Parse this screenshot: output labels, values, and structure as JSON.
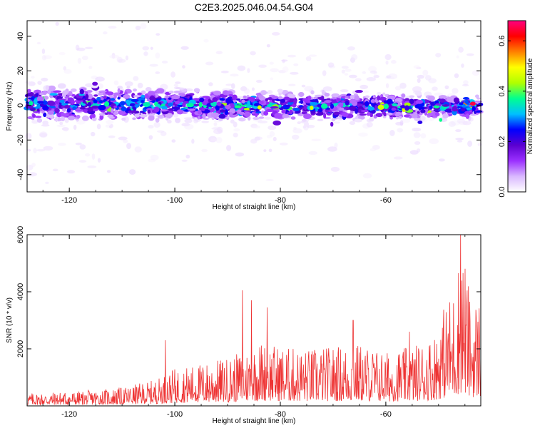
{
  "figure": {
    "title": "C2E3.2025.046.04.54.G04"
  },
  "chart_data": [
    {
      "type": "heatmap",
      "title": "C2E3.2025.046.04.54.G04",
      "xlabel": "Height of straight line (km)",
      "ylabel": "Frequency (Hz)",
      "xlim": [
        -128,
        -42
      ],
      "ylim": [
        -50,
        49
      ],
      "x_ticks": [
        -120,
        -100,
        -80,
        -60
      ],
      "y_ticks": [
        -40,
        -20,
        0,
        20,
        40
      ],
      "grid": false,
      "colorbar": {
        "label": "Normalized spectral amplitude",
        "range": [
          0,
          0.68
        ],
        "ticks": [
          0.0,
          0.2,
          0.4,
          0.6
        ],
        "colormap": [
          "#ffffff",
          "#d9b8ff",
          "#9b30ff",
          "#5a00d0",
          "#0000ff",
          "#00c0ff",
          "#00ff90",
          "#b0ff00",
          "#ffff00",
          "#ff8000",
          "#ff0000",
          "#ff0080"
        ]
      },
      "band": {
        "center_hz_start": 1,
        "center_hz_end": -1,
        "half_width_hz": 9,
        "peak_amplitude": 0.65
      }
    },
    {
      "type": "line",
      "xlabel": "Height of straight line (km)",
      "ylabel": "SNR (10 * v/v)",
      "xlim": [
        -128,
        -42
      ],
      "ylim": [
        0,
        6000
      ],
      "x_ticks": [
        -120,
        -100,
        -80,
        -60
      ],
      "y_ticks": [
        2000,
        4000,
        6000
      ],
      "grid": false,
      "series": [
        {
          "color": "#ee3333",
          "envelope": {
            "x": [
              -128,
              -118,
              -110,
              -104,
              -100,
              -95,
              -90,
              -86,
              -84,
              -80,
              -75,
              -70,
              -65,
              -60,
              -55,
              -51,
              -49,
              -47,
              -45.5,
              -44,
              -42
            ],
            "y": [
              450,
              520,
              650,
              900,
              1300,
              1500,
              1700,
              2000,
              2300,
              2100,
              2000,
              2100,
              2200,
              1900,
              2100,
              2500,
              3500,
              4200,
              6000,
              3800,
              3900
            ]
          },
          "peaks": [
            {
              "x": -45.8,
              "y": 6050
            },
            {
              "x": -87.2,
              "y": 4050
            },
            {
              "x": -85.5,
              "y": 3700
            },
            {
              "x": -82.5,
              "y": 3450
            },
            {
              "x": -66.2,
              "y": 3000
            },
            {
              "x": -55.5,
              "y": 2600
            },
            {
              "x": -101.8,
              "y": 2300
            }
          ]
        }
      ]
    }
  ]
}
